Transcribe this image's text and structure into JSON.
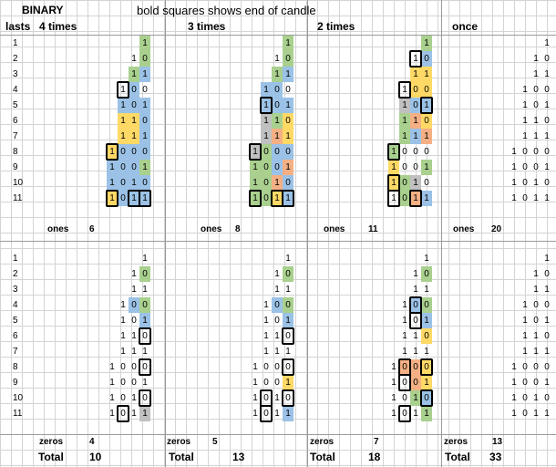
{
  "header": {
    "title": "BINARY",
    "note": "bold squares shows end of candle",
    "lasts_label": "lasts"
  },
  "columns": [
    {
      "label": "4 times",
      "ones_value": "6",
      "zeros_value": "4",
      "total_value": "10"
    },
    {
      "label": "3 times",
      "ones_value": "8",
      "zeros_value": "5",
      "total_value": "13"
    },
    {
      "label": "2 times",
      "ones_value": "11",
      "zeros_value": "7",
      "total_value": "18"
    },
    {
      "label": "once",
      "ones_value": "20",
      "zeros_value": "13",
      "total_value": "33"
    }
  ],
  "labels": {
    "ones": "ones",
    "zeros": "zeros",
    "total": "Total"
  },
  "row_numbers": [
    "1",
    "2",
    "3",
    "4",
    "5",
    "6",
    "7",
    "8",
    "9",
    "10",
    "11"
  ],
  "binary": [
    "1",
    "10",
    "11",
    "100",
    "101",
    "110",
    "111",
    "1000",
    "1001",
    "1010",
    "1011"
  ],
  "colors": {
    "green": "#a9d08e",
    "blue": "#9bc2e6",
    "yellow": "#ffd966",
    "silver": "#c0c0c0",
    "salmon": "#f4b084",
    "grid": "#d4d4d4"
  },
  "cell_colors": {
    "top": [
      [
        "g",
        "g",
        "gb",
        "bn",
        "bbb",
        "yyb",
        "yyb",
        "ybbb",
        "bbbg",
        "bbbb",
        "ybbb"
      ],
      [
        "g",
        "g",
        "gb",
        "bbn",
        "bbb",
        "sgy",
        "sry",
        "sgbb",
        "ggbr",
        "ggrb",
        "ggyb"
      ],
      [
        "g",
        "b",
        "yy",
        "yy",
        "sbb",
        "gry",
        "gbr",
        "gnnn",
        "ynng",
        "ygsn",
        "ngrb"
      ],
      [
        "",
        "",
        "",
        "",
        "",
        "",
        "",
        "",
        "",
        "",
        ""
      ]
    ],
    "bottom": [
      [
        "",
        "g",
        "",
        "bg",
        "b",
        "",
        "",
        "",
        "",
        "",
        "s"
      ],
      [
        "",
        "g",
        "",
        "bg",
        "b",
        "",
        "",
        "",
        "y",
        "",
        "b"
      ],
      [
        "",
        "g",
        "",
        "bg",
        "b",
        "y",
        "",
        "rry",
        "ry",
        "gb",
        "g"
      ],
      [
        "",
        "",
        "",
        "",
        "",
        "",
        "",
        "",
        "",
        "",
        ""
      ]
    ]
  }
}
